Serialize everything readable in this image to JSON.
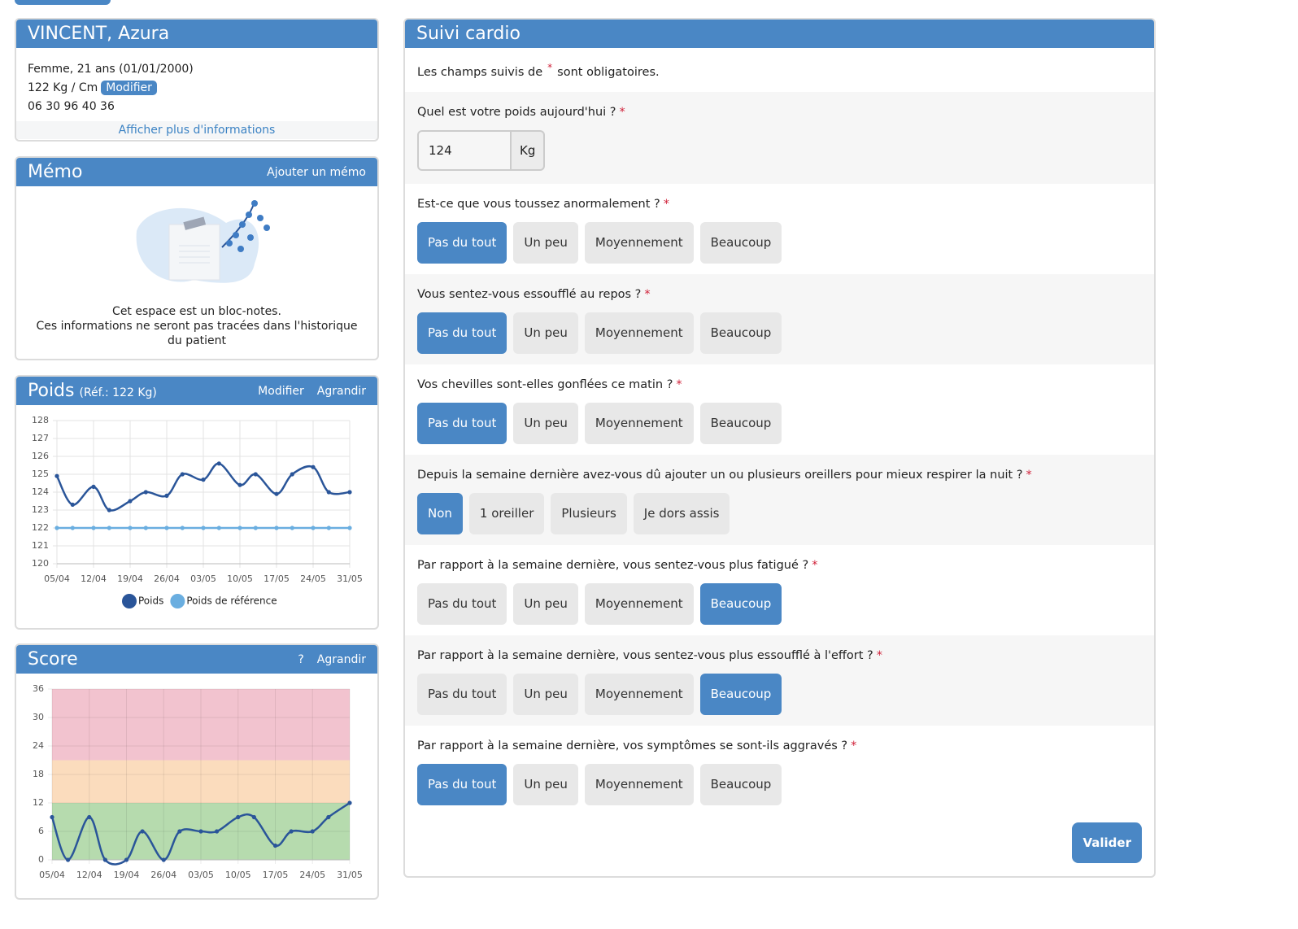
{
  "patient": {
    "name": "VINCENT, Azura",
    "details": "Femme, 21 ans (01/01/2000)",
    "measures": "122 Kg /  Cm",
    "edit": "Modifier",
    "phone": "06 30 96 40 36",
    "more": "Afficher plus d'informations"
  },
  "memo": {
    "title": "Mémo",
    "action": "Ajouter un mémo",
    "lines": [
      "Cet espace est un bloc-notes.",
      "Ces informations ne seront pas tracées dans l'historique du patient"
    ]
  },
  "weight_panel": {
    "title": "Poids",
    "reference": "(Réf.: 122 Kg)",
    "actions": [
      "Modifier",
      "Agrandir"
    ]
  },
  "score_panel": {
    "title": "Score",
    "actions": [
      "?",
      "Agrandir"
    ]
  },
  "chart_data": [
    {
      "type": "line",
      "smooth": true,
      "grid": true,
      "legend": "bottom",
      "x": [
        0,
        3,
        7,
        10,
        14,
        17,
        21,
        24,
        28,
        31,
        35,
        38,
        42,
        45,
        49,
        52,
        56
      ],
      "series": [
        {
          "name": "Poids",
          "color": "#2a5599",
          "values": [
            124.9,
            123.3,
            124.3,
            123.0,
            123.5,
            124.0,
            123.8,
            125.0,
            124.7,
            125.6,
            124.4,
            125.0,
            123.9,
            125.0,
            125.4,
            124.0,
            124.0
          ]
        },
        {
          "name": "Poids de référence",
          "color": "#6aaee0",
          "values": [
            122,
            122,
            122,
            122,
            122,
            122,
            122,
            122,
            122,
            122,
            122,
            122,
            122,
            122,
            122,
            122,
            122
          ]
        }
      ],
      "xlim": [
        0,
        56
      ],
      "xticks": [
        {
          "value": 0,
          "label": "05/04"
        },
        {
          "value": 7,
          "label": "12/04"
        },
        {
          "value": 14,
          "label": "19/04"
        },
        {
          "value": 21,
          "label": "26/04"
        },
        {
          "value": 28,
          "label": "03/05"
        },
        {
          "value": 35,
          "label": "10/05"
        },
        {
          "value": 42,
          "label": "17/05"
        },
        {
          "value": 49,
          "label": "24/05"
        },
        {
          "value": 56,
          "label": "31/05"
        }
      ],
      "ylim": [
        120,
        128
      ],
      "yticks": [
        120,
        121,
        122,
        123,
        124,
        125,
        126,
        127,
        128
      ]
    },
    {
      "type": "line",
      "smooth": true,
      "grid": true,
      "x": [
        0,
        3,
        7,
        10,
        14,
        17,
        21,
        24,
        28,
        31,
        35,
        38,
        42,
        45,
        49,
        52,
        56
      ],
      "series": [
        {
          "color": "#2a5599",
          "values": [
            9,
            0,
            9,
            0,
            0,
            6,
            0,
            6,
            6,
            6,
            9,
            9,
            3,
            6,
            6,
            9,
            12
          ]
        }
      ],
      "bands": [
        {
          "from": 0,
          "to": 12,
          "color": "#b6dbae"
        },
        {
          "from": 12,
          "to": 21,
          "color": "#fbdcbd"
        },
        {
          "from": 21,
          "to": 36,
          "color": "#f2c3cf"
        }
      ],
      "xlim": [
        0,
        56
      ],
      "xticks": [
        {
          "value": 0,
          "label": "05/04"
        },
        {
          "value": 7,
          "label": "12/04"
        },
        {
          "value": 14,
          "label": "19/04"
        },
        {
          "value": 21,
          "label": "26/04"
        },
        {
          "value": 28,
          "label": "03/05"
        },
        {
          "value": 35,
          "label": "10/05"
        },
        {
          "value": 42,
          "label": "17/05"
        },
        {
          "value": 49,
          "label": "24/05"
        },
        {
          "value": 56,
          "label": "31/05"
        }
      ],
      "ylim": [
        0,
        36
      ],
      "yticks": [
        0,
        6,
        12,
        18,
        24,
        30,
        36
      ]
    }
  ],
  "form": {
    "title": "Suivi cardio",
    "intro_before": "Les champs suivis de",
    "intro_after": "sont obligatoires.",
    "required_mark": "*",
    "weight": {
      "label": "Quel est votre poids aujourd'hui ?",
      "value": 124,
      "unit": "Kg"
    },
    "questions": [
      {
        "label": "Est-ce que vous toussez anormalement ?",
        "options": [
          "Pas du tout",
          "Un peu",
          "Moyennement",
          "Beaucoup"
        ],
        "selected": 0
      },
      {
        "label": "Vous sentez-vous essoufflé au repos ?",
        "options": [
          "Pas du tout",
          "Un peu",
          "Moyennement",
          "Beaucoup"
        ],
        "selected": 0
      },
      {
        "label": "Vos chevilles sont-elles gonflées ce matin ?",
        "options": [
          "Pas du tout",
          "Un peu",
          "Moyennement",
          "Beaucoup"
        ],
        "selected": 0
      },
      {
        "label": "Depuis la semaine dernière avez-vous dû ajouter un ou plusieurs oreillers pour mieux respirer la nuit ?",
        "options": [
          "Non",
          "1 oreiller",
          "Plusieurs",
          "Je dors assis"
        ],
        "selected": 0
      },
      {
        "label": "Par rapport à la semaine dernière, vous sentez-vous plus fatigué ?",
        "options": [
          "Pas du tout",
          "Un peu",
          "Moyennement",
          "Beaucoup"
        ],
        "selected": 3
      },
      {
        "label": "Par rapport à la semaine dernière, vous sentez-vous plus essoufflé à l'effort ?",
        "options": [
          "Pas du tout",
          "Un peu",
          "Moyennement",
          "Beaucoup"
        ],
        "selected": 3
      },
      {
        "label": "Par rapport à la semaine dernière, vos symptômes se sont-ils aggravés ?",
        "options": [
          "Pas du tout",
          "Un peu",
          "Moyennement",
          "Beaucoup"
        ],
        "selected": 0
      }
    ],
    "submit": "Valider"
  }
}
